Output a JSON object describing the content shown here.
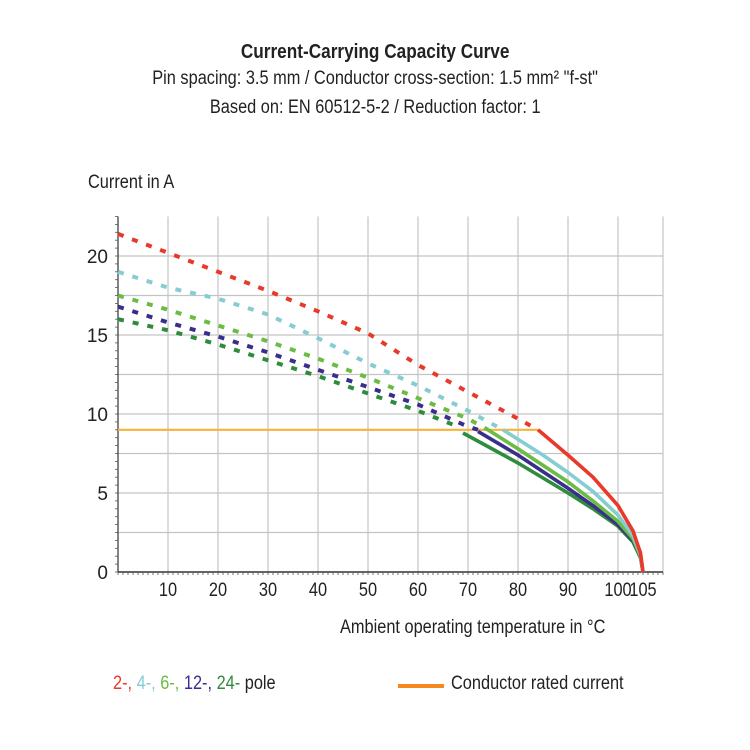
{
  "chart_data": {
    "type": "line",
    "title": "Current-Carrying Capacity Curve",
    "subtitle_lines": [
      "Pin spacing: 3.5 mm / Conductor cross-section: 1.5 mm² \"f-st\"",
      "Based on: EN 60512-5-2 / Reduction factor: 1"
    ],
    "ylabel": "Current in A",
    "xlabel": "Ambient operating temperature in °C",
    "xlim": [
      0,
      109
    ],
    "ylim": [
      0,
      22.5
    ],
    "xticks": [
      10,
      20,
      30,
      40,
      50,
      60,
      70,
      80,
      90,
      100,
      105
    ],
    "yticks": [
      0,
      5,
      10,
      15,
      20
    ],
    "grid": true,
    "legend_placement": "bottom",
    "series": [
      {
        "name": "2-",
        "color": "#e8392a",
        "dashed": [
          [
            0,
            21.4
          ],
          [
            10,
            20.2
          ],
          [
            20,
            19.0
          ],
          [
            30,
            17.8
          ],
          [
            40,
            16.5
          ],
          [
            50,
            15.1
          ],
          [
            60,
            13.1
          ],
          [
            70,
            11.4
          ],
          [
            80,
            9.7
          ],
          [
            84,
            9.0
          ]
        ],
        "solid": [
          [
            84,
            9.0
          ],
          [
            90,
            7.4
          ],
          [
            95,
            6.0
          ],
          [
            100,
            4.2
          ],
          [
            103,
            2.6
          ],
          [
            104.5,
            1.2
          ],
          [
            105,
            0
          ]
        ]
      },
      {
        "name": "4-",
        "color": "#85cdd2",
        "dashed": [
          [
            0,
            19.0
          ],
          [
            10,
            18.0
          ],
          [
            20,
            17.3
          ],
          [
            30,
            16.3
          ],
          [
            40,
            14.8
          ],
          [
            50,
            13.2
          ],
          [
            60,
            11.8
          ],
          [
            70,
            10.2
          ],
          [
            77,
            9.0
          ]
        ],
        "solid": [
          [
            77,
            9.0
          ],
          [
            85,
            7.4
          ],
          [
            90,
            6.3
          ],
          [
            95,
            5.1
          ],
          [
            100,
            3.6
          ],
          [
            103,
            2.3
          ],
          [
            104.5,
            1.1
          ],
          [
            105,
            0
          ]
        ]
      },
      {
        "name": "6-",
        "color": "#6cbb45",
        "dashed": [
          [
            0,
            17.5
          ],
          [
            10,
            16.6
          ],
          [
            20,
            15.6
          ],
          [
            30,
            14.6
          ],
          [
            40,
            13.5
          ],
          [
            50,
            12.3
          ],
          [
            60,
            11.0
          ],
          [
            70,
            9.7
          ],
          [
            74,
            9.0
          ]
        ],
        "solid": [
          [
            74,
            9.0
          ],
          [
            80,
            7.8
          ],
          [
            90,
            5.7
          ],
          [
            95,
            4.5
          ],
          [
            100,
            3.2
          ],
          [
            103,
            2.1
          ],
          [
            104.5,
            1.0
          ],
          [
            105,
            0
          ]
        ]
      },
      {
        "name": "12-",
        "color": "#3a2e8c",
        "dashed": [
          [
            0,
            16.8
          ],
          [
            10,
            15.8
          ],
          [
            20,
            14.9
          ],
          [
            30,
            13.9
          ],
          [
            40,
            12.8
          ],
          [
            50,
            11.7
          ],
          [
            60,
            10.6
          ],
          [
            70,
            9.2
          ],
          [
            72,
            9.0
          ]
        ],
        "solid": [
          [
            72,
            8.9
          ],
          [
            80,
            7.4
          ],
          [
            90,
            5.3
          ],
          [
            95,
            4.2
          ],
          [
            100,
            3.0
          ],
          [
            103,
            2.0
          ],
          [
            104.5,
            1.0
          ],
          [
            105,
            0
          ]
        ]
      },
      {
        "name": "24-",
        "color": "#2f8c3c",
        "dashed": [
          [
            0,
            16.0
          ],
          [
            10,
            15.3
          ],
          [
            20,
            14.4
          ],
          [
            30,
            13.4
          ],
          [
            40,
            12.4
          ],
          [
            50,
            11.3
          ],
          [
            60,
            10.2
          ],
          [
            68,
            9.2
          ]
        ],
        "solid": [
          [
            69,
            8.8
          ],
          [
            80,
            6.9
          ],
          [
            90,
            5.0
          ],
          [
            95,
            4.0
          ],
          [
            100,
            2.9
          ],
          [
            103,
            1.9
          ],
          [
            104.5,
            0.9
          ],
          [
            105,
            0
          ]
        ]
      }
    ],
    "rated_current": {
      "name": "Conductor rated current",
      "value": 9,
      "x_range": [
        0,
        84
      ],
      "color": "#f7b23b",
      "legend_color": "#f5891f"
    },
    "legend": {
      "series_labels": [
        "2-,",
        "4-,",
        "6-,",
        "12-,",
        "24-"
      ],
      "series_suffix": "pole",
      "rated_label": "Conductor rated current"
    }
  }
}
